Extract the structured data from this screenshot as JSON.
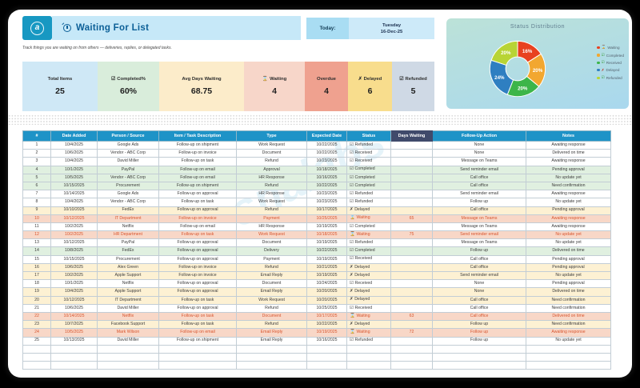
{
  "brand": {
    "logo_letter": "a"
  },
  "header": {
    "title": "Waiting For List",
    "today_label": "Today:",
    "today_day": "Tuesday",
    "today_date": "16-Dec-25",
    "subtitle": "Track things you are waiting on from others — deliveries, replies, or delegated tasks."
  },
  "watermark": "snalabs",
  "kpis": [
    {
      "label": "Total Items",
      "icon": "",
      "value": "25",
      "bg": "#cfe8f6"
    },
    {
      "label": "Completed%",
      "icon": "☑",
      "value": "60%",
      "bg": "#d9eddb"
    },
    {
      "label": "Avg Days Waiting",
      "icon": "",
      "value": "68.75",
      "bg": "#fcecca"
    },
    {
      "label": "Waiting",
      "icon": "⌛",
      "value": "4",
      "bg": "#f7d6c9"
    },
    {
      "label": "Overdue",
      "icon": "",
      "value": "4",
      "bg": "#efa18f"
    },
    {
      "label": "Delayed",
      "icon": "✗",
      "value": "6",
      "bg": "#f8dd8d"
    },
    {
      "label": "Refunded",
      "icon": "☑",
      "value": "5",
      "bg": "#cfd9e5"
    }
  ],
  "chart_data": {
    "type": "pie",
    "title": "Status Distribution",
    "labels": [
      "Waiting",
      "Completed",
      "Received",
      "Delayed",
      "Refunded"
    ],
    "values": [
      16,
      20,
      20,
      24,
      20
    ],
    "colors": [
      "#e8411f",
      "#f2a730",
      "#3cb549",
      "#2f7fc1",
      "#b8d435"
    ],
    "legend": [
      {
        "label": "Waiting",
        "icon": "⌛",
        "icon_color": "#c23b1d"
      },
      {
        "label": "Completed",
        "icon": "☑",
        "icon_color": "#3a9c3a"
      },
      {
        "label": "Received",
        "icon": "☑",
        "icon_color": "#3a9c3a"
      },
      {
        "label": "Delayed",
        "icon": "✗",
        "icon_color": "#c0392b"
      },
      {
        "label": "Refunded",
        "icon": "☑",
        "icon_color": "#3a9c3a"
      }
    ],
    "legend_position": "right",
    "donut": true
  },
  "table": {
    "columns": [
      {
        "key": "n",
        "label": "#"
      },
      {
        "key": "date",
        "label": "Date Added"
      },
      {
        "key": "person",
        "label": "Person / Source"
      },
      {
        "key": "item",
        "label": "Item / Task Description"
      },
      {
        "key": "type",
        "label": "Type"
      },
      {
        "key": "expected",
        "label": "Expected Date"
      },
      {
        "key": "status",
        "label": "Status"
      },
      {
        "key": "days",
        "label": "Days Waiting"
      },
      {
        "key": "follow",
        "label": "Follow-Up Action"
      },
      {
        "key": "notes",
        "label": "Notes"
      }
    ],
    "status_icons": {
      "Refunded": "☑",
      "Received": "☑",
      "Completed": "☑",
      "Delayed": "✗",
      "Waiting": "⌛"
    },
    "empty_rows": 3,
    "rows": [
      {
        "n": 1,
        "date": "10/4/2025",
        "person": "Google Ads",
        "item": "Follow-up on shipment",
        "type": "Work Request",
        "expected": "10/22/2025",
        "status": "Refunded",
        "days": "",
        "follow": "None",
        "notes": "Awaiting response",
        "tone": "white"
      },
      {
        "n": 2,
        "date": "10/6/2025",
        "person": "Vendor - ABC Corp",
        "item": "Follow-up on invoice",
        "type": "Document",
        "expected": "10/22/2025",
        "status": "Received",
        "days": "",
        "follow": "None",
        "notes": "Delivered on time",
        "tone": "white"
      },
      {
        "n": 3,
        "date": "10/4/2025",
        "person": "David Miller",
        "item": "Follow-up on task",
        "type": "Refund",
        "expected": "10/23/2025",
        "status": "Received",
        "days": "",
        "follow": "Message on Teams",
        "notes": "Awaiting response",
        "tone": "white"
      },
      {
        "n": 4,
        "date": "10/1/2025",
        "person": "PayPal",
        "item": "Follow-up on email",
        "type": "Approval",
        "expected": "10/18/2025",
        "status": "Completed",
        "days": "",
        "follow": "Send reminder email",
        "notes": "Pending approval",
        "tone": "green"
      },
      {
        "n": 5,
        "date": "10/5/2025",
        "person": "Vendor - ABC Corp",
        "item": "Follow-up on email",
        "type": "HR Response",
        "expected": "10/16/2025",
        "status": "Completed",
        "days": "",
        "follow": "Call office",
        "notes": "No update yet",
        "tone": "green"
      },
      {
        "n": 6,
        "date": "10/15/2025",
        "person": "Procurement",
        "item": "Follow-up on shipment",
        "type": "Refund",
        "expected": "10/22/2025",
        "status": "Completed",
        "days": "",
        "follow": "Call office",
        "notes": "Need confirmation",
        "tone": "green"
      },
      {
        "n": 7,
        "date": "10/14/2025",
        "person": "Google Ads",
        "item": "Follow-up on approval",
        "type": "HR Response",
        "expected": "10/23/2025",
        "status": "Refunded",
        "days": "",
        "follow": "Send reminder email",
        "notes": "Awaiting response",
        "tone": "white"
      },
      {
        "n": 8,
        "date": "10/4/2025",
        "person": "Vendor - ABC Corp",
        "item": "Follow-up on task",
        "type": "Work Request",
        "expected": "10/23/2025",
        "status": "Refunded",
        "days": "",
        "follow": "Follow up",
        "notes": "No update yet",
        "tone": "white"
      },
      {
        "n": 9,
        "date": "10/10/2025",
        "person": "FedEx",
        "item": "Follow-up on approval",
        "type": "Refund",
        "expected": "10/17/2025",
        "status": "Delayed",
        "days": "",
        "follow": "Call office",
        "notes": "Pending approval",
        "tone": "cream"
      },
      {
        "n": 10,
        "date": "10/12/2025",
        "person": "IT Department",
        "item": "Follow-up on invoice",
        "type": "Payment",
        "expected": "10/25/2025",
        "status": "Waiting",
        "days": "65",
        "follow": "Message on Teams",
        "notes": "Awaiting response",
        "tone": "red"
      },
      {
        "n": 11,
        "date": "10/2/2025",
        "person": "Netflix",
        "item": "Follow-up on email",
        "type": "HR Response",
        "expected": "10/19/2025",
        "status": "Completed",
        "days": "",
        "follow": "Message on Teams",
        "notes": "Awaiting response",
        "tone": "white"
      },
      {
        "n": 12,
        "date": "10/2/2025",
        "person": "HR Department",
        "item": "Follow-up on task",
        "type": "Work Request",
        "expected": "10/18/2025",
        "status": "Waiting",
        "days": "75",
        "follow": "Send reminder email",
        "notes": "No update yet",
        "tone": "red"
      },
      {
        "n": 13,
        "date": "10/12/2025",
        "person": "PayPal",
        "item": "Follow-up on approval",
        "type": "Document",
        "expected": "10/19/2025",
        "status": "Refunded",
        "days": "",
        "follow": "Message on Teams",
        "notes": "No update yet",
        "tone": "white"
      },
      {
        "n": 14,
        "date": "10/8/2025",
        "person": "FedEx",
        "item": "Follow-up on approval",
        "type": "Delivery",
        "expected": "10/22/2025",
        "status": "Completed",
        "days": "",
        "follow": "Follow up",
        "notes": "Delivered on time",
        "tone": "green"
      },
      {
        "n": 15,
        "date": "10/15/2025",
        "person": "Procurement",
        "item": "Follow-up on approval",
        "type": "Payment",
        "expected": "10/19/2025",
        "status": "Received",
        "days": "",
        "follow": "Call office",
        "notes": "Pending approval",
        "tone": "white"
      },
      {
        "n": 16,
        "date": "10/6/2025",
        "person": "Alex Green",
        "item": "Follow-up on invoice",
        "type": "Refund",
        "expected": "10/21/2025",
        "status": "Delayed",
        "days": "",
        "follow": "Call office",
        "notes": "Pending approval",
        "tone": "cream"
      },
      {
        "n": 17,
        "date": "10/2/2025",
        "person": "Apple Support",
        "item": "Follow-up on invoice",
        "type": "Email Reply",
        "expected": "10/19/2025",
        "status": "Delayed",
        "days": "",
        "follow": "Send reminder email",
        "notes": "No update yet",
        "tone": "cream"
      },
      {
        "n": 18,
        "date": "10/1/2025",
        "person": "Netflix",
        "item": "Follow-up on approval",
        "type": "Document",
        "expected": "10/24/2025",
        "status": "Received",
        "days": "",
        "follow": "None",
        "notes": "Pending approval",
        "tone": "white"
      },
      {
        "n": 19,
        "date": "10/4/2025",
        "person": "Apple Support",
        "item": "Follow-up on approval",
        "type": "Email Reply",
        "expected": "10/20/2025",
        "status": "Delayed",
        "days": "",
        "follow": "None",
        "notes": "Delivered on time",
        "tone": "cream"
      },
      {
        "n": 20,
        "date": "10/12/2025",
        "person": "IT Department",
        "item": "Follow-up on task",
        "type": "Work Request",
        "expected": "10/20/2025",
        "status": "Delayed",
        "days": "",
        "follow": "Call office",
        "notes": "Need confirmation",
        "tone": "cream"
      },
      {
        "n": 21,
        "date": "10/6/2025",
        "person": "David Miller",
        "item": "Follow-up on approval",
        "type": "Refund",
        "expected": "10/25/2025",
        "status": "Received",
        "days": "",
        "follow": "Call office",
        "notes": "Need confirmation",
        "tone": "white"
      },
      {
        "n": 22,
        "date": "10/14/2025",
        "person": "Netflix",
        "item": "Follow-up on task",
        "type": "Document",
        "expected": "10/17/2025",
        "status": "Waiting",
        "days": "63",
        "follow": "Call office",
        "notes": "Delivered on time",
        "tone": "red"
      },
      {
        "n": 23,
        "date": "10/7/2025",
        "person": "Facebook Support",
        "item": "Follow-up on task",
        "type": "Refund",
        "expected": "10/22/2025",
        "status": "Delayed",
        "days": "",
        "follow": "Follow up",
        "notes": "Need confirmation",
        "tone": "cream"
      },
      {
        "n": 24,
        "date": "10/5/2025",
        "person": "Mark Wilson",
        "item": "Follow-up on email",
        "type": "Email Reply",
        "expected": "10/19/2025",
        "status": "Waiting",
        "days": "72",
        "follow": "Follow up",
        "notes": "Awaiting response",
        "tone": "red"
      },
      {
        "n": 25,
        "date": "10/13/2025",
        "person": "David Miller",
        "item": "Follow-up on shipment",
        "type": "Email Reply",
        "expected": "10/16/2025",
        "status": "Refunded",
        "days": "",
        "follow": "Follow up",
        "notes": "No update yet",
        "tone": "white"
      }
    ]
  },
  "colors": {
    "table_header": "#1e93c7",
    "days_waiting_header": "#404a6b",
    "row_green": "#e0f0e0",
    "row_cream": "#fdf1d3",
    "row_red_bg": "#f8d7c7",
    "red_text": "#d8552e",
    "title_bar": "#c6e8f8",
    "logo_teal": "#1798c2"
  }
}
